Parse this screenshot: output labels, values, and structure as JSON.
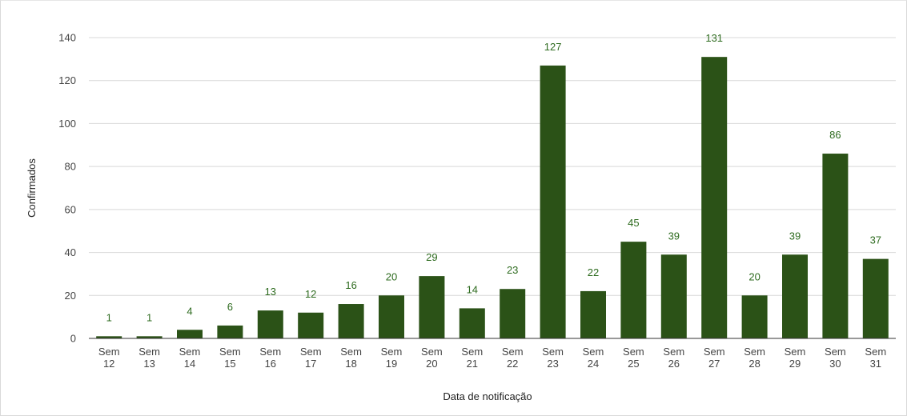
{
  "chart_data": {
    "type": "bar",
    "categories": [
      [
        "Sem",
        "12"
      ],
      [
        "Sem",
        "13"
      ],
      [
        "Sem",
        "14"
      ],
      [
        "Sem",
        "15"
      ],
      [
        "Sem",
        "16"
      ],
      [
        "Sem",
        "17"
      ],
      [
        "Sem",
        "18"
      ],
      [
        "Sem",
        "19"
      ],
      [
        "Sem",
        "20"
      ],
      [
        "Sem",
        "21"
      ],
      [
        "Sem",
        "22"
      ],
      [
        "Sem",
        "23"
      ],
      [
        "Sem",
        "24"
      ],
      [
        "Sem",
        "25"
      ],
      [
        "Sem",
        "26"
      ],
      [
        "Sem",
        "27"
      ],
      [
        "Sem",
        "28"
      ],
      [
        "Sem",
        "29"
      ],
      [
        "Sem",
        "30"
      ],
      [
        "Sem",
        "31"
      ]
    ],
    "values": [
      1,
      1,
      4,
      6,
      13,
      12,
      16,
      20,
      29,
      14,
      23,
      127,
      22,
      45,
      39,
      131,
      20,
      39,
      86,
      37
    ],
    "title": "",
    "xlabel": "Data de notificação",
    "ylabel": "Confirmados",
    "ylim": [
      0,
      140
    ],
    "yticks": [
      0,
      20,
      40,
      60,
      80,
      100,
      120,
      140
    ],
    "grid": true,
    "legend": "none",
    "colors": {
      "bar": "#2b5217",
      "data_label": "#2e6b1f",
      "grid": "#d8d8d8",
      "axis": "#333333"
    }
  }
}
